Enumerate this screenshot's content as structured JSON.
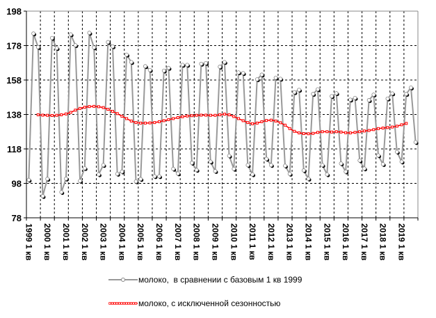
{
  "chart_data": {
    "type": "line",
    "title": "",
    "xlabel": "",
    "ylabel": "",
    "ylim": [
      78,
      198
    ],
    "y_ticks": [
      "78",
      "98",
      "118",
      "138",
      "158",
      "178",
      "198"
    ],
    "grid": true,
    "category_count": 84,
    "label_every": 4,
    "grid_every": 3,
    "x_tick_labels": [
      "1999 1 кв",
      "2000 1 кв",
      "2001 1 кв",
      "2002 1 кв",
      "2003 1 кв",
      "2004 1 кв",
      "2005 1 кв",
      "2006 1 кв",
      "2007 1 кв",
      "2008 1 кв",
      "2009 1 кв",
      "2010 1 кв",
      "2011 1 кв",
      "2012 1 кв",
      "2013 1 кв",
      "2014 1 кв",
      "2015 1 кв",
      "2016 1 кв",
      "2017 1 кв",
      "2018 1 кв",
      "2019 1 кв"
    ],
    "legend_position": "bottom",
    "series": [
      {
        "name": "молоко,  в сравнении с базовым 1 кв 1999",
        "color": "#999999",
        "values": [
          100,
          185.0,
          177.1,
          90.6,
          100.6,
          182.4,
          176.5,
          92.9,
          100.7,
          184.5,
          178.2,
          99.4,
          106.8,
          185.4,
          176.9,
          103.2,
          108.6,
          180.0,
          177.5,
          103.5,
          104.8,
          172.7,
          168.4,
          99.1,
          100.5,
          166.0,
          163.8,
          102.1,
          102.1,
          163.4,
          165.0,
          106.4,
          103.7,
          166.8,
          166.8,
          109.9,
          105.8,
          167.4,
          167.8,
          110.6,
          105.1,
          165.7,
          168.4,
          114.0,
          106.4,
          162.4,
          162.0,
          108.6,
          103.2,
          158.4,
          161.1,
          112.2,
          108.6,
          159.3,
          158.7,
          108.2,
          103.5,
          150.9,
          152.3,
          105.5,
          100.7,
          149.9,
          152.6,
          108.6,
          103.2,
          148.6,
          150.3,
          109.5,
          104.8,
          146.6,
          147.6,
          111.3,
          106.6,
          146.3,
          149.5,
          114.2,
          109.1,
          147.2,
          150.2,
          116.3,
          110.6,
          149.9,
          153.6,
          121.9
        ]
      },
      {
        "name": "молоко, с исключенной сезонностью",
        "color": "#ff0000",
        "values": [
          null,
          null,
          137.8,
          137.6,
          137.5,
          137.4,
          137.5,
          137.8,
          138.3,
          139.2,
          140.5,
          141.5,
          142.2,
          142.6,
          142.7,
          142.5,
          142.0,
          141.0,
          139.8,
          138.5,
          137.0,
          135.6,
          134.2,
          133.3,
          133.0,
          133.0,
          133.1,
          133.3,
          133.8,
          134.4,
          135.0,
          135.6,
          136.2,
          136.7,
          137.1,
          137.3,
          137.5,
          137.6,
          137.6,
          137.5,
          137.5,
          137.8,
          138.2,
          137.8,
          136.8,
          135.6,
          134.4,
          133.3,
          132.6,
          133.0,
          133.8,
          134.5,
          134.7,
          134.2,
          133.2,
          131.8,
          129.8,
          128.2,
          127.3,
          126.9,
          126.8,
          127.0,
          127.6,
          128.0,
          128.0,
          127.8,
          128.0,
          127.8,
          127.4,
          127.3,
          127.6,
          128.0,
          128.4,
          128.7,
          129.2,
          129.8,
          130.1,
          130.4,
          130.7,
          131.2,
          132.0,
          132.8,
          null,
          null
        ]
      }
    ]
  }
}
